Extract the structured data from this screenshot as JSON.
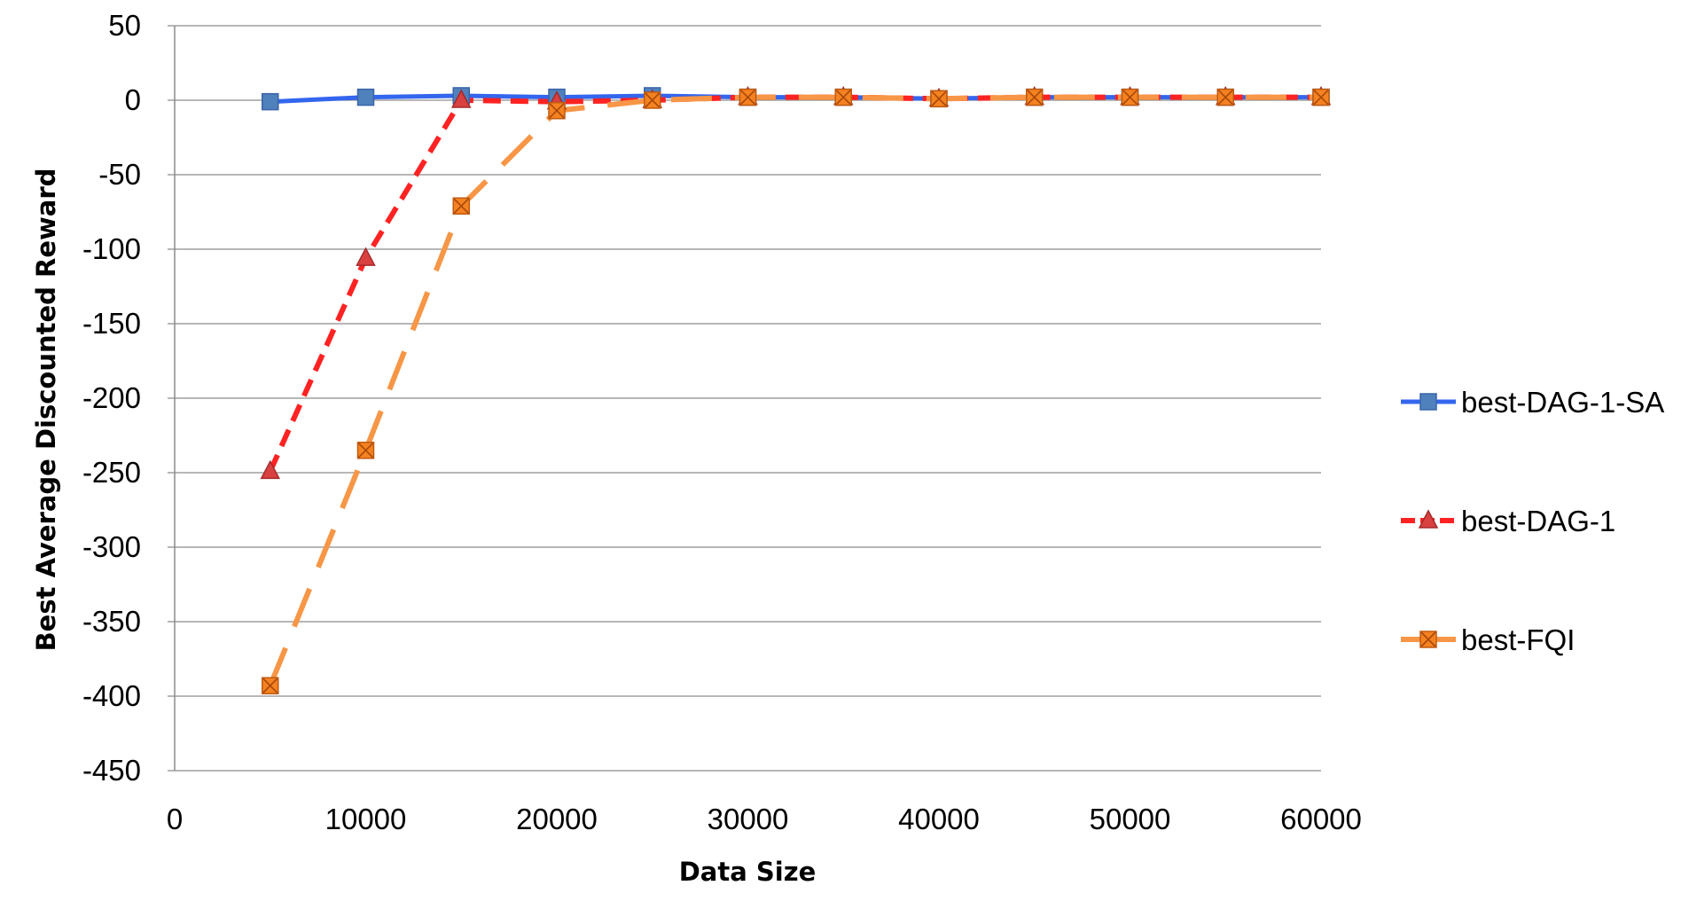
{
  "chart_data": {
    "type": "line",
    "title": "",
    "xlabel": "Data Size",
    "ylabel": "Best Average Discounted Reward",
    "xlim": [
      0,
      60000
    ],
    "ylim": [
      -450,
      50
    ],
    "x_ticks": [
      0,
      10000,
      20000,
      30000,
      40000,
      50000,
      60000
    ],
    "y_ticks": [
      50,
      0,
      -50,
      -100,
      -150,
      -200,
      -250,
      -300,
      -350,
      -400,
      -450
    ],
    "grid": "horizontal",
    "legend_position": "right",
    "x": [
      5000,
      10000,
      15000,
      20000,
      25000,
      30000,
      35000,
      40000,
      45000,
      50000,
      55000,
      60000
    ],
    "series": [
      {
        "name": "best-DAG-1-SA",
        "color": "#3366ee",
        "marker_color": "#4f81bd",
        "line_style": "solid",
        "marker": "square",
        "values": [
          -1,
          2,
          3,
          2,
          3,
          2,
          2,
          1,
          2,
          2,
          2,
          2
        ]
      },
      {
        "name": "best-DAG-1",
        "color": "#ff2222",
        "marker_color": "#d94040",
        "line_style": "dashed",
        "marker": "triangle",
        "values": [
          -249,
          -106,
          0,
          -1,
          0,
          2,
          2,
          1,
          2,
          2,
          2,
          2
        ]
      },
      {
        "name": "best-FQI",
        "color": "#f79646",
        "marker_color": "#f58220",
        "line_style": "longdash",
        "marker": "square-x",
        "values": [
          -393,
          -235,
          -71,
          -7,
          0,
          2,
          2,
          1,
          2,
          2,
          2,
          2
        ]
      }
    ]
  }
}
